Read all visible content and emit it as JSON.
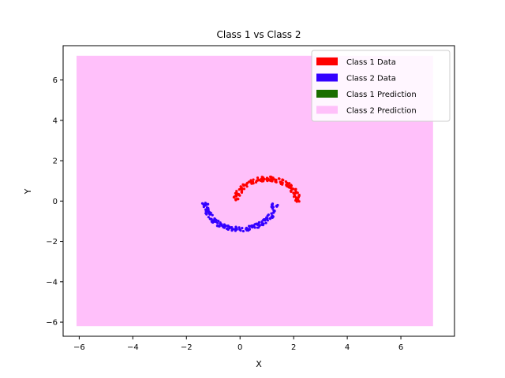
{
  "chart_data": {
    "type": "scatter",
    "title": "Class 1 vs Class 2",
    "xlabel": "X",
    "ylabel": "Y",
    "xlim": [
      -6.6,
      8.0
    ],
    "ylim": [
      -6.7,
      7.7
    ],
    "xticks": [
      -6,
      -4,
      -2,
      0,
      2,
      4,
      6
    ],
    "yticks": [
      -6,
      -4,
      -2,
      0,
      2,
      4,
      6
    ],
    "grid": false,
    "legend_position": "top-right",
    "decision_region": {
      "label": "Class 2 Prediction",
      "color": "#ffc0fa",
      "x_range": [
        -6.1,
        7.2
      ],
      "y_range": [
        -6.2,
        7.2
      ]
    },
    "series": [
      {
        "name": "Class 1 Data",
        "color": "#ff0000",
        "arc": {
          "cx": 1.0,
          "cy": -0.05,
          "r": 1.15,
          "start_deg": 0,
          "end_deg": 180,
          "thickness": 0.22,
          "count": 160
        }
      },
      {
        "name": "Class 2 Data",
        "color": "#3300ff",
        "arc": {
          "cx": 0.0,
          "cy": -0.1,
          "r": 1.3,
          "start_deg": 180,
          "end_deg": 360,
          "thickness": 0.22,
          "count": 160
        }
      }
    ],
    "legend": [
      {
        "label": "Class 1 Data",
        "color": "#ff0000"
      },
      {
        "label": "Class 2 Data",
        "color": "#3300ff"
      },
      {
        "label": "Class 1 Prediction",
        "color": "#1a6e00"
      },
      {
        "label": "Class 2 Prediction",
        "color": "#ffc0fa"
      }
    ]
  }
}
